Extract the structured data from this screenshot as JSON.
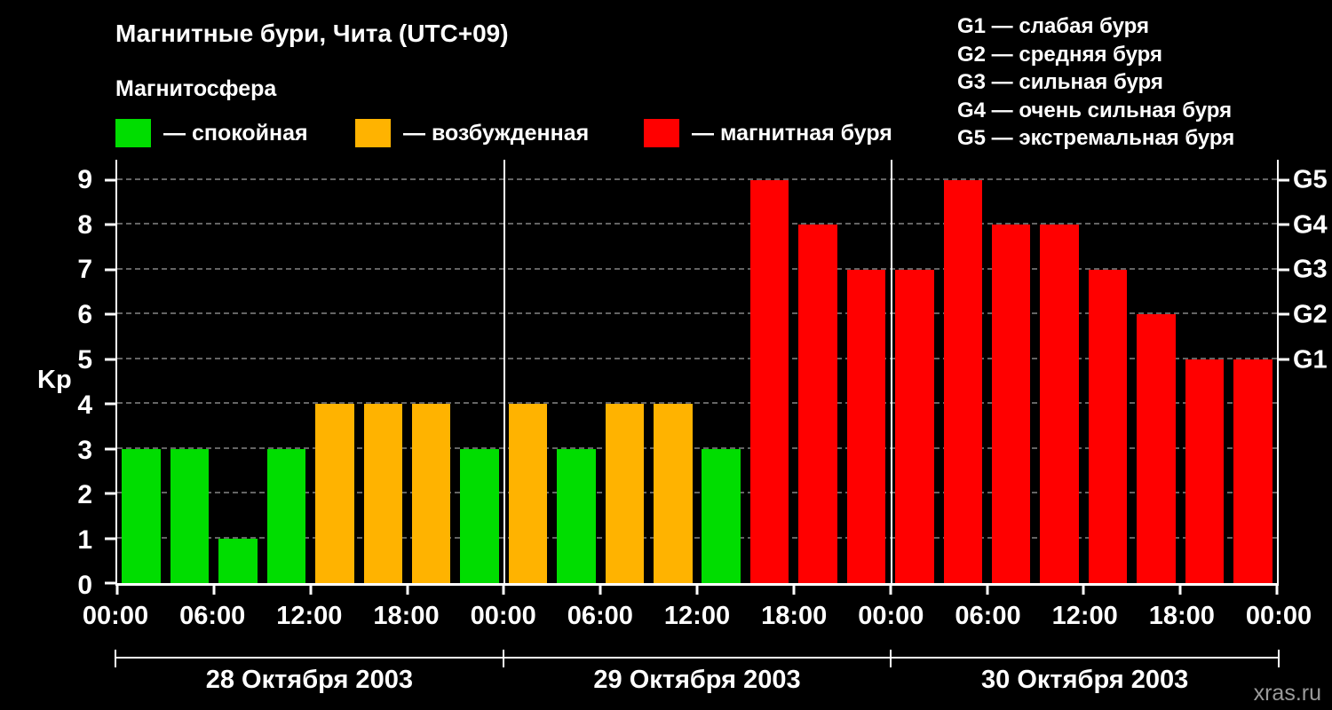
{
  "title": "Магнитные бури, Чита (UTC+09)",
  "legend": {
    "title": "Магнитосфера",
    "items": [
      {
        "name": "quiet",
        "label": "— спокойная",
        "color": "#00dd00"
      },
      {
        "name": "excited",
        "label": "— возбужденная",
        "color": "#ffb300"
      },
      {
        "name": "storm",
        "label": "— магнитная буря",
        "color": "#ff0000"
      }
    ]
  },
  "storm_scale": [
    "G1 — слабая буря",
    "G2 — средняя буря",
    "G3 — сильная буря",
    "G4 — очень сильная буря",
    "G5 — экстремальная буря"
  ],
  "watermark": "xras.ru",
  "chart_data": {
    "type": "bar",
    "title": "Магнитные бури, Чита (UTC+09)",
    "ylabel": "Kp",
    "ylim": [
      0,
      9.45
    ],
    "yticks": [
      0,
      1,
      2,
      3,
      4,
      5,
      6,
      7,
      8,
      9
    ],
    "grid": "dashed horizontal",
    "legend_position": "top",
    "right_axis": [
      {
        "label": "G5",
        "value": 9
      },
      {
        "label": "G4",
        "value": 8
      },
      {
        "label": "G3",
        "value": 7
      },
      {
        "label": "G2",
        "value": 6
      },
      {
        "label": "G1",
        "value": 5
      }
    ],
    "x_tick_labels": [
      "00:00",
      "06:00",
      "12:00",
      "18:00",
      "00:00",
      "06:00",
      "12:00",
      "18:00",
      "00:00",
      "06:00",
      "12:00",
      "18:00",
      "00:00"
    ],
    "interval_hours": 3,
    "days": [
      {
        "date": "28 Октября 2003",
        "values": [
          3,
          3,
          1,
          3,
          4,
          4,
          4,
          3
        ]
      },
      {
        "date": "29 Октября 2003",
        "values": [
          4,
          3,
          4,
          4,
          3,
          9,
          8,
          7
        ]
      },
      {
        "date": "30 Октября 2003",
        "values": [
          7,
          9,
          8,
          8,
          7,
          6,
          5,
          5
        ]
      }
    ],
    "colors": {
      "quiet": "#00dd00",
      "excited": "#ffb300",
      "storm": "#ff0000"
    },
    "color_rules": {
      "quiet_max": 3,
      "excited_max": 4
    }
  }
}
